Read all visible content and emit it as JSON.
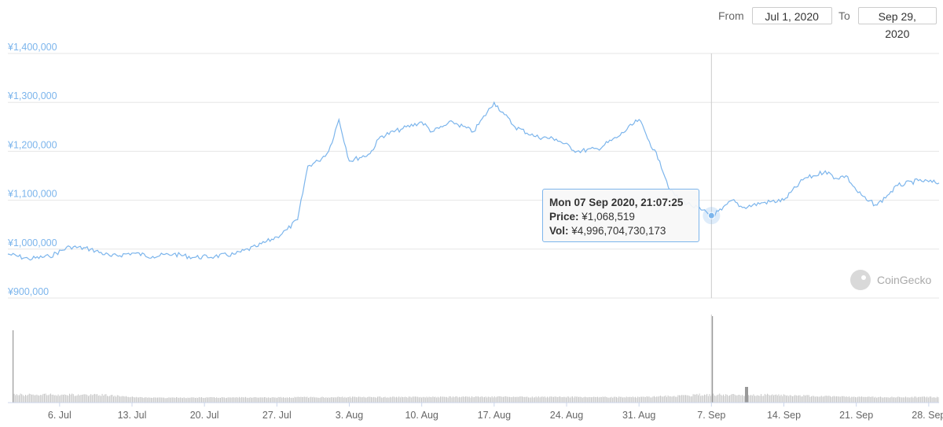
{
  "range_selector": {
    "from_label": "From",
    "from_value": "Jul 1, 2020",
    "to_label": "To",
    "to_value": "Sep 29, 2020"
  },
  "tooltip": {
    "date": "Mon 07 Sep 2020, 21:07:25",
    "price_label": "Price:",
    "price_value": "¥1,068,519",
    "vol_label": "Vol:",
    "vol_value": "¥4,996,704,730,173"
  },
  "watermark": "CoinGecko",
  "colors": {
    "line": "#7cb5ec",
    "volume": "#999999",
    "grid": "#e6e6e6",
    "axis_label": "#7cb5ec"
  },
  "chart_data": {
    "type": "line",
    "title": "",
    "xlabel": "",
    "ylabel": "",
    "ylim": [
      900000,
      1400000
    ],
    "ytick_labels": [
      "¥1,400,000",
      "¥1,300,000",
      "¥1,200,000",
      "¥1,100,000",
      "¥1,000,000",
      "¥900,000"
    ],
    "ytick_values": [
      1400000,
      1300000,
      1200000,
      1100000,
      1000000,
      900000
    ],
    "xlim": [
      "2020-07-01",
      "2020-09-29"
    ],
    "xtick_labels": [
      "6. Jul",
      "13. Jul",
      "20. Jul",
      "27. Jul",
      "3. Aug",
      "10. Aug",
      "17. Aug",
      "24. Aug",
      "31. Aug",
      "7. Sep",
      "14. Sep",
      "21. Sep",
      "28. Sep"
    ],
    "xtick_dates": [
      "2020-07-06",
      "2020-07-13",
      "2020-07-20",
      "2020-07-27",
      "2020-08-03",
      "2020-08-10",
      "2020-08-17",
      "2020-08-24",
      "2020-08-31",
      "2020-09-07",
      "2020-09-14",
      "2020-09-21",
      "2020-09-28"
    ],
    "grid": true,
    "series": [
      {
        "x": [
          "2020-07-01",
          "2020-07-03",
          "2020-07-05",
          "2020-07-07",
          "2020-07-09",
          "2020-07-11",
          "2020-07-13",
          "2020-07-15",
          "2020-07-17",
          "2020-07-19",
          "2020-07-21",
          "2020-07-23",
          "2020-07-25",
          "2020-07-27",
          "2020-07-28",
          "2020-07-29",
          "2020-07-30",
          "2020-07-31",
          "2020-08-01",
          "2020-08-02",
          "2020-08-03",
          "2020-08-05",
          "2020-08-06",
          "2020-08-08",
          "2020-08-10",
          "2020-08-11",
          "2020-08-12",
          "2020-08-13",
          "2020-08-15",
          "2020-08-17",
          "2020-08-18",
          "2020-08-19",
          "2020-08-21",
          "2020-08-23",
          "2020-08-25",
          "2020-08-27",
          "2020-08-29",
          "2020-08-31",
          "2020-09-01",
          "2020-09-02",
          "2020-09-03",
          "2020-09-04",
          "2020-09-05",
          "2020-09-06",
          "2020-09-07",
          "2020-09-08",
          "2020-09-09",
          "2020-09-10",
          "2020-09-12",
          "2020-09-14",
          "2020-09-16",
          "2020-09-17",
          "2020-09-18",
          "2020-09-19",
          "2020-09-20",
          "2020-09-21",
          "2020-09-22",
          "2020-09-23",
          "2020-09-24",
          "2020-09-25",
          "2020-09-27",
          "2020-09-29"
        ],
        "values": [
          990000,
          980000,
          985000,
          1005000,
          1000000,
          985000,
          992000,
          985000,
          990000,
          983000,
          985000,
          990000,
          1005000,
          1025000,
          1040000,
          1060000,
          1170000,
          1180000,
          1200000,
          1265000,
          1180000,
          1195000,
          1230000,
          1245000,
          1260000,
          1240000,
          1250000,
          1260000,
          1240000,
          1300000,
          1275000,
          1250000,
          1230000,
          1225000,
          1200000,
          1205000,
          1230000,
          1265000,
          1220000,
          1180000,
          1120000,
          1100000,
          1090000,
          1080000,
          1068519,
          1080000,
          1100000,
          1085000,
          1095000,
          1100000,
          1145000,
          1150000,
          1160000,
          1145000,
          1150000,
          1120000,
          1100000,
          1090000,
          1110000,
          1130000,
          1140000,
          1135000
        ]
      }
    ],
    "volume": {
      "x": [
        "2020-07-01",
        "2020-07-14",
        "2020-07-27",
        "2020-08-03",
        "2020-08-17",
        "2020-08-31",
        "2020-09-05",
        "2020-09-07",
        "2020-09-10",
        "2020-09-12",
        "2020-09-21",
        "2020-09-29"
      ],
      "values": [
        1.0,
        0.15,
        0.18,
        0.2,
        0.22,
        0.2,
        0.35,
        1.0,
        0.3,
        0.4,
        0.2,
        0.2
      ]
    },
    "highlighted_point": {
      "x": "2020-09-07",
      "y": 1068519
    }
  }
}
